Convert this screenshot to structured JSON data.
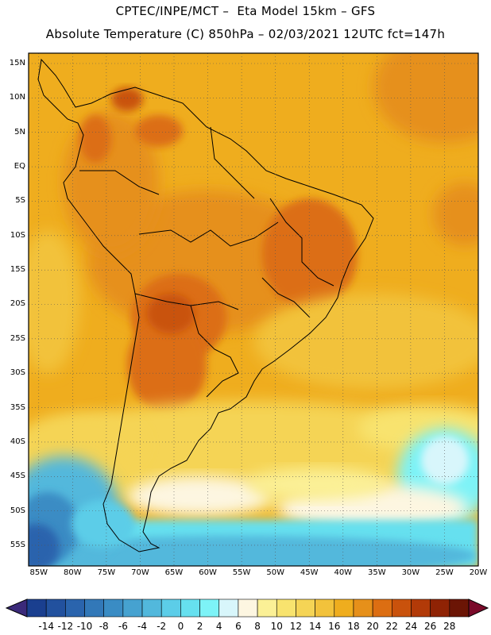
{
  "header": {
    "line1": "CPTEC/INPE/MCT –  Eta Model 15km – GFS",
    "line2": "Absolute Temperature (C) 850hPa – 02/03/2021 12UTC fct=147h"
  },
  "map": {
    "lat_labels": [
      "15N",
      "10N",
      "5N",
      "EQ",
      "5S",
      "10S",
      "15S",
      "20S",
      "25S",
      "30S",
      "35S",
      "40S",
      "45S",
      "50S",
      "55S"
    ],
    "lon_labels": [
      "85W",
      "80W",
      "75W",
      "70W",
      "65W",
      "60W",
      "55W",
      "50W",
      "45W",
      "40W",
      "35W",
      "30W",
      "25W",
      "20W"
    ],
    "lat_range": [
      -58,
      16.5
    ],
    "lon_range": [
      -86.5,
      -20
    ],
    "grid": true
  },
  "colorbar": {
    "ticks": [
      "-14",
      "-12",
      "-10",
      "-8",
      "-6",
      "-4",
      "-2",
      "0",
      "2",
      "4",
      "6",
      "8",
      "10",
      "12",
      "14",
      "16",
      "18",
      "20",
      "22",
      "24",
      "26",
      "28"
    ],
    "colors": [
      "#1a3f8f",
      "#22519e",
      "#2a64ad",
      "#3278b8",
      "#3a8cc4",
      "#46a2d0",
      "#52b8dc",
      "#5ccde8",
      "#66e0ef",
      "#7df3f7",
      "#d8f6fb",
      "#fdf6e1",
      "#fbf096",
      "#f8e36e",
      "#f5d455",
      "#f2c23b",
      "#efad1e",
      "#e6901a",
      "#dc6e12",
      "#c9520c",
      "#b23a08",
      "#8f2304",
      "#6b1505"
    ],
    "arrow_left": "#3b2a7a",
    "arrow_right": "#7a0a2a"
  }
}
